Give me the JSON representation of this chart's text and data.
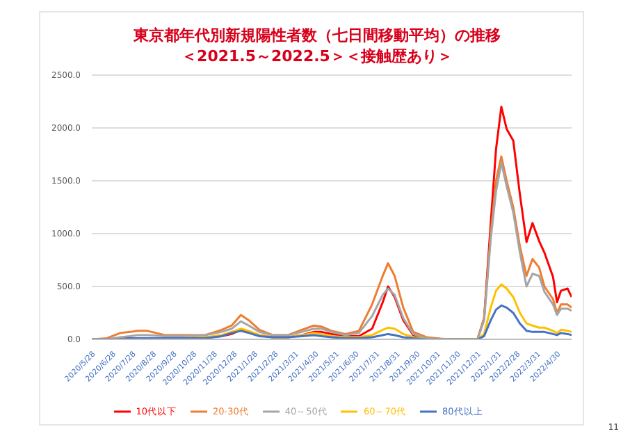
{
  "chart_data": {
    "type": "line",
    "title": "東京都年代別新規陽性者数（七日間移動平均）の推移",
    "subtitle": "＜2021.5～2022.5＞＜接触歴あり＞",
    "x": [
      "2020-05-28",
      "2020-06-20",
      "2020-07-10",
      "2020-07-25",
      "2020-08-05",
      "2020-08-20",
      "2020-09-15",
      "2020-10-15",
      "2020-11-15",
      "2020-12-10",
      "2020-12-25",
      "2021-01-08",
      "2021-01-20",
      "2021-02-05",
      "2021-02-25",
      "2021-03-20",
      "2021-04-10",
      "2021-04-28",
      "2021-05-10",
      "2021-05-25",
      "2021-06-15",
      "2021-07-05",
      "2021-07-25",
      "2021-08-10",
      "2021-08-18",
      "2021-08-28",
      "2021-09-10",
      "2021-09-25",
      "2021-10-15",
      "2021-11-15",
      "2021-12-15",
      "2021-12-31",
      "2022-01-10",
      "2022-01-20",
      "2022-01-28",
      "2022-02-05",
      "2022-02-13",
      "2022-02-23",
      "2022-03-05",
      "2022-03-15",
      "2022-03-24",
      "2022-04-03",
      "2022-04-11",
      "2022-04-24",
      "2022-04-30",
      "2022-05-06",
      "2022-05-16",
      "2022-05-22"
    ],
    "series": [
      {
        "name": "10代以下",
        "color": "#ff0000",
        "values": [
          0,
          0,
          10,
          10,
          10,
          10,
          10,
          10,
          20,
          30,
          50,
          90,
          70,
          40,
          20,
          20,
          40,
          70,
          70,
          50,
          30,
          30,
          100,
          350,
          500,
          400,
          180,
          40,
          10,
          0,
          0,
          0,
          200,
          1100,
          1800,
          2200,
          1990,
          1880,
          1370,
          920,
          1100,
          930,
          820,
          590,
          350,
          460,
          480,
          400
        ]
      },
      {
        "name": "20-30代",
        "color": "#f07c30",
        "values": [
          0,
          10,
          60,
          70,
          80,
          80,
          40,
          40,
          40,
          90,
          130,
          230,
          180,
          90,
          40,
          40,
          90,
          130,
          120,
          80,
          50,
          80,
          330,
          600,
          720,
          600,
          300,
          70,
          20,
          0,
          0,
          0,
          200,
          1000,
          1500,
          1730,
          1500,
          1250,
          880,
          600,
          760,
          680,
          500,
          380,
          250,
          330,
          330,
          300
        ]
      },
      {
        "name": "40～50代",
        "color": "#a5a5a5",
        "values": [
          0,
          0,
          20,
          30,
          40,
          40,
          30,
          30,
          40,
          70,
          100,
          170,
          130,
          70,
          40,
          40,
          70,
          100,
          100,
          70,
          40,
          60,
          220,
          420,
          480,
          420,
          200,
          50,
          10,
          0,
          0,
          0,
          180,
          950,
          1400,
          1670,
          1450,
          1200,
          820,
          500,
          620,
          600,
          450,
          330,
          230,
          290,
          290,
          270
        ]
      },
      {
        "name": "60～70代",
        "color": "#ffc000",
        "values": [
          null,
          null,
          null,
          null,
          null,
          null,
          null,
          10,
          20,
          40,
          70,
          100,
          80,
          40,
          20,
          20,
          40,
          60,
          50,
          30,
          20,
          20,
          40,
          90,
          110,
          100,
          50,
          20,
          0,
          0,
          0,
          0,
          50,
          300,
          460,
          520,
          480,
          400,
          250,
          150,
          130,
          110,
          110,
          80,
          60,
          90,
          80,
          70
        ]
      },
      {
        "name": "80代以上",
        "color": "#4472c4",
        "values": [
          0,
          0,
          0,
          10,
          10,
          10,
          10,
          10,
          10,
          30,
          60,
          80,
          60,
          30,
          20,
          20,
          30,
          40,
          30,
          20,
          10,
          10,
          20,
          40,
          50,
          40,
          20,
          10,
          0,
          0,
          0,
          0,
          30,
          180,
          280,
          320,
          300,
          250,
          150,
          80,
          70,
          70,
          70,
          50,
          40,
          60,
          50,
          40
        ]
      }
    ],
    "xlim": [
      "2020-05-28",
      "2022-05-22"
    ],
    "xticks": [
      {
        "value": "2020-05-28",
        "label": "2020/5/28"
      },
      {
        "value": "2020-06-28",
        "label": "2020/6/28"
      },
      {
        "value": "2020-07-28",
        "label": "2020/7/28"
      },
      {
        "value": "2020-08-28",
        "label": "2020/8/28"
      },
      {
        "value": "2020-09-28",
        "label": "2020/9/28"
      },
      {
        "value": "2020-10-28",
        "label": "2020/10/28"
      },
      {
        "value": "2020-11-28",
        "label": "2020/11/28"
      },
      {
        "value": "2020-12-28",
        "label": "2020/12/28"
      },
      {
        "value": "2021-01-28",
        "label": "2021/1/28"
      },
      {
        "value": "2021-02-28",
        "label": "2021/2/28"
      },
      {
        "value": "2021-03-31",
        "label": "2021/3/31"
      },
      {
        "value": "2021-04-30",
        "label": "2021/4/30"
      },
      {
        "value": "2021-05-31",
        "label": "2021/5/31"
      },
      {
        "value": "2021-06-30",
        "label": "2021/6/30"
      },
      {
        "value": "2021-07-31",
        "label": "2021/7/31"
      },
      {
        "value": "2021-08-31",
        "label": "2021/8/31"
      },
      {
        "value": "2021-09-30",
        "label": "2021/9/30"
      },
      {
        "value": "2021-10-31",
        "label": "2021/10/31"
      },
      {
        "value": "2021-11-30",
        "label": "2021/11/30"
      },
      {
        "value": "2021-12-31",
        "label": "2021/12/31"
      },
      {
        "value": "2022-01-31",
        "label": "2022/1/31"
      },
      {
        "value": "2022-02-28",
        "label": "2022/2/28"
      },
      {
        "value": "2022-03-31",
        "label": "2022/3/31"
      },
      {
        "value": "2022-04-30",
        "label": "2022/4/30"
      }
    ],
    "ylim": [
      0,
      2500
    ],
    "yticks": [
      {
        "value": 0,
        "label": "0.0"
      },
      {
        "value": 500,
        "label": "500.0"
      },
      {
        "value": 1000,
        "label": "1000.0"
      },
      {
        "value": 1500,
        "label": "1500.0"
      },
      {
        "value": 2000,
        "label": "2000.0"
      },
      {
        "value": 2500,
        "label": "2500.0"
      }
    ],
    "grid": "y",
    "legend": "bottom",
    "marker": "none",
    "line_style": "solid",
    "annotations": [
      "11"
    ]
  }
}
